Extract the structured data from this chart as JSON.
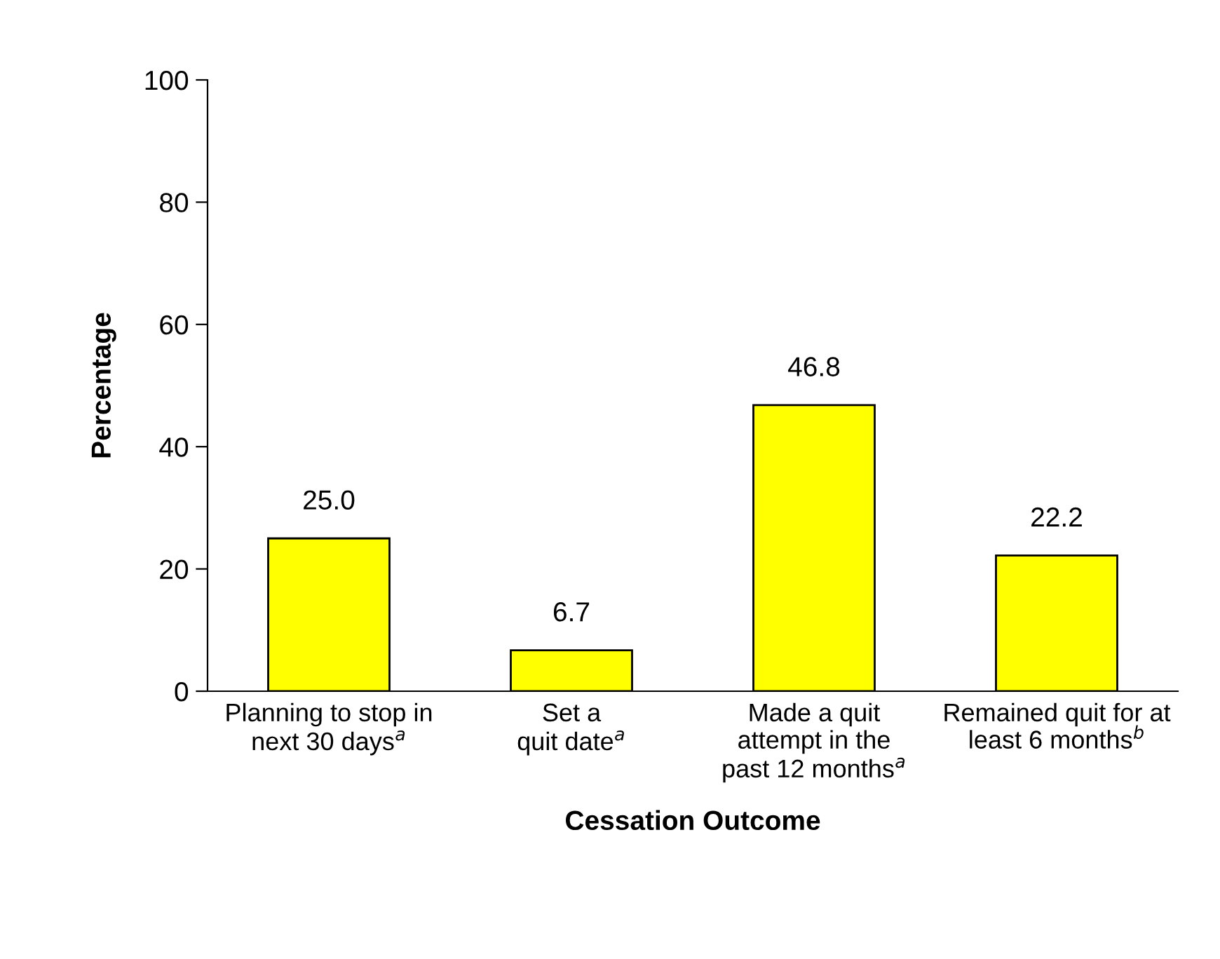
{
  "chart_data": {
    "type": "bar",
    "xlabel": "Cessation Outcome",
    "ylabel": "Percentage",
    "categories": [
      "Planning to stop in\nnext 30 days$^{a}$",
      "Set a\nquit date$^{a}$",
      "Made a quit\nattempt in the\npast 12 months$^{a}$",
      "Remained quit for at\nleast 6 months$^{b}$"
    ],
    "values": [
      25.0,
      6.7,
      46.8,
      22.2
    ],
    "value_labels": [
      "25.0",
      "6.7",
      "46.8",
      "22.2"
    ],
    "color": "#ffff00",
    "ylim": [
      0,
      100
    ],
    "yticks": [
      0,
      20,
      40,
      60,
      80,
      100
    ],
    "grid": false,
    "legend": false
  }
}
